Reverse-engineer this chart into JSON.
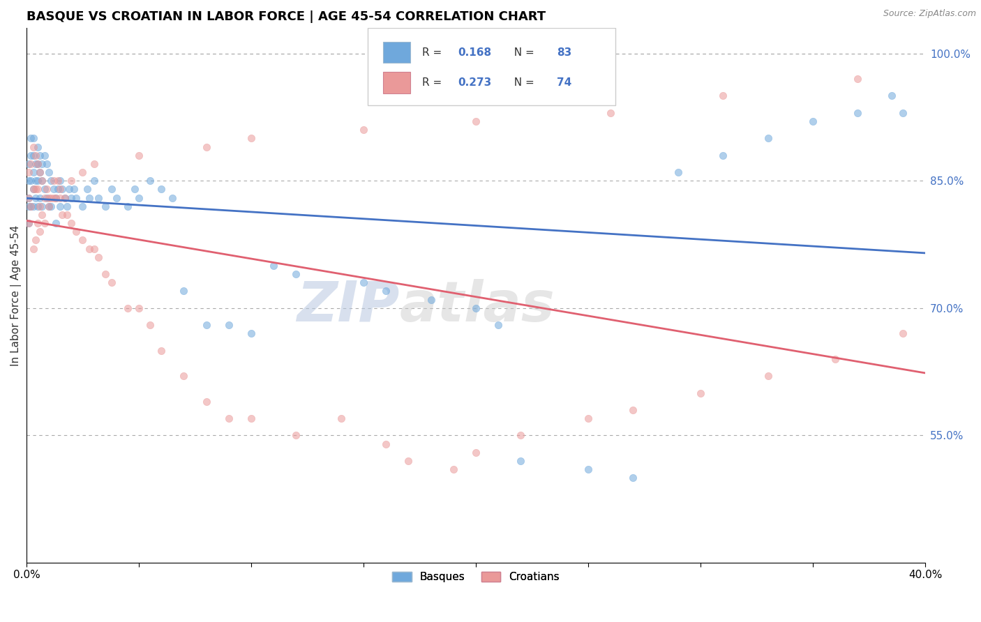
{
  "title": "BASQUE VS CROATIAN IN LABOR FORCE | AGE 45-54 CORRELATION CHART",
  "source_text": "Source: ZipAtlas.com",
  "ylabel": "In Labor Force | Age 45-54",
  "xlim": [
    0.0,
    0.4
  ],
  "ylim": [
    0.4,
    1.03
  ],
  "ytick_positions": [
    0.55,
    0.7,
    0.85,
    1.0
  ],
  "basque_color": "#6fa8dc",
  "croatian_color": "#ea9999",
  "line_blue": "#4472c4",
  "line_pink": "#e06070",
  "R_basque": 0.168,
  "N_basque": 83,
  "R_croatian": 0.273,
  "N_croatian": 74,
  "legend_label_basque": "Basques",
  "legend_label_croatian": "Croatians",
  "watermark_zip": "ZIP",
  "watermark_atlas": "atlas",
  "background_color": "#ffffff",
  "grid_color": "#aaaaaa",
  "title_fontsize": 13,
  "axis_label_fontsize": 11,
  "tick_fontsize": 10,
  "dot_size": 55,
  "dot_alpha": 0.55,
  "right_tick_color": "#4472c4",
  "basque_x": [
    0.001,
    0.001,
    0.001,
    0.001,
    0.001,
    0.002,
    0.002,
    0.002,
    0.002,
    0.003,
    0.003,
    0.003,
    0.003,
    0.003,
    0.004,
    0.004,
    0.004,
    0.005,
    0.005,
    0.005,
    0.005,
    0.006,
    0.006,
    0.006,
    0.007,
    0.007,
    0.007,
    0.008,
    0.008,
    0.009,
    0.009,
    0.01,
    0.01,
    0.011,
    0.011,
    0.012,
    0.013,
    0.013,
    0.014,
    0.015,
    0.015,
    0.016,
    0.017,
    0.018,
    0.019,
    0.02,
    0.021,
    0.022,
    0.025,
    0.027,
    0.028,
    0.03,
    0.032,
    0.035,
    0.038,
    0.04,
    0.045,
    0.048,
    0.05,
    0.055,
    0.06,
    0.065,
    0.07,
    0.08,
    0.09,
    0.1,
    0.11,
    0.12,
    0.15,
    0.16,
    0.18,
    0.2,
    0.21,
    0.22,
    0.25,
    0.27,
    0.29,
    0.31,
    0.33,
    0.35,
    0.37,
    0.385,
    0.39
  ],
  "basque_y": [
    0.87,
    0.85,
    0.83,
    0.82,
    0.8,
    0.9,
    0.88,
    0.85,
    0.82,
    0.9,
    0.88,
    0.86,
    0.84,
    0.82,
    0.87,
    0.85,
    0.83,
    0.89,
    0.87,
    0.85,
    0.82,
    0.88,
    0.86,
    0.83,
    0.87,
    0.85,
    0.82,
    0.88,
    0.84,
    0.87,
    0.83,
    0.86,
    0.82,
    0.85,
    0.82,
    0.84,
    0.83,
    0.8,
    0.84,
    0.85,
    0.82,
    0.84,
    0.83,
    0.82,
    0.84,
    0.83,
    0.84,
    0.83,
    0.82,
    0.84,
    0.83,
    0.85,
    0.83,
    0.82,
    0.84,
    0.83,
    0.82,
    0.84,
    0.83,
    0.85,
    0.84,
    0.83,
    0.72,
    0.68,
    0.68,
    0.67,
    0.75,
    0.74,
    0.73,
    0.72,
    0.71,
    0.7,
    0.68,
    0.52,
    0.51,
    0.5,
    0.86,
    0.88,
    0.9,
    0.92,
    0.93,
    0.95,
    0.93
  ],
  "croatian_x": [
    0.001,
    0.001,
    0.001,
    0.002,
    0.002,
    0.003,
    0.003,
    0.004,
    0.004,
    0.005,
    0.005,
    0.005,
    0.006,
    0.006,
    0.007,
    0.007,
    0.008,
    0.009,
    0.01,
    0.011,
    0.012,
    0.013,
    0.014,
    0.015,
    0.016,
    0.017,
    0.018,
    0.02,
    0.022,
    0.025,
    0.028,
    0.03,
    0.032,
    0.035,
    0.038,
    0.045,
    0.05,
    0.055,
    0.06,
    0.07,
    0.08,
    0.09,
    0.1,
    0.12,
    0.14,
    0.16,
    0.17,
    0.19,
    0.2,
    0.22,
    0.25,
    0.27,
    0.3,
    0.33,
    0.36,
    0.39,
    0.003,
    0.004,
    0.006,
    0.008,
    0.01,
    0.012,
    0.015,
    0.02,
    0.025,
    0.03,
    0.05,
    0.08,
    0.1,
    0.15,
    0.2,
    0.26,
    0.31,
    0.37
  ],
  "croatian_y": [
    0.86,
    0.83,
    0.8,
    0.87,
    0.82,
    0.89,
    0.84,
    0.88,
    0.84,
    0.87,
    0.84,
    0.8,
    0.86,
    0.82,
    0.85,
    0.81,
    0.83,
    0.84,
    0.83,
    0.83,
    0.85,
    0.83,
    0.85,
    0.83,
    0.81,
    0.83,
    0.81,
    0.8,
    0.79,
    0.78,
    0.77,
    0.77,
    0.76,
    0.74,
    0.73,
    0.7,
    0.7,
    0.68,
    0.65,
    0.62,
    0.59,
    0.57,
    0.57,
    0.55,
    0.57,
    0.54,
    0.52,
    0.51,
    0.53,
    0.55,
    0.57,
    0.58,
    0.6,
    0.62,
    0.64,
    0.67,
    0.77,
    0.78,
    0.79,
    0.8,
    0.82,
    0.83,
    0.84,
    0.85,
    0.86,
    0.87,
    0.88,
    0.89,
    0.9,
    0.91,
    0.92,
    0.93,
    0.95,
    0.97
  ]
}
